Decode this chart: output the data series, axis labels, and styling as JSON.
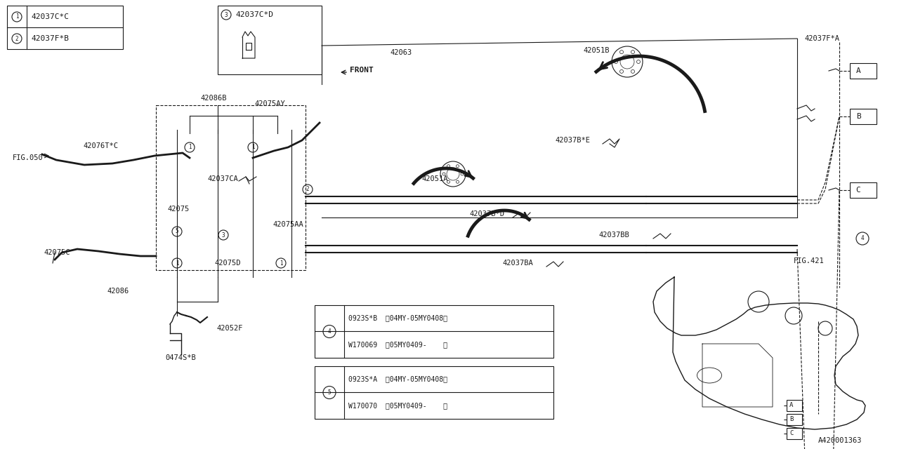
{
  "bg_color": "#ffffff",
  "line_color": "#1a1a1a",
  "fig_ref": "A420001363",
  "legend1_items": [
    {
      "num": "1",
      "part": "42037C*C"
    },
    {
      "num": "2",
      "part": "42037F*B"
    }
  ],
  "legend3_part": "42037C*D",
  "table4_row1": "0923S*B  (04MY-05MY0408)",
  "table4_row2": "W170069  (05MY0409-    )",
  "table5_row1": "0923S*A  (04MY-05MY0408)",
  "table5_row2": "W170070  (05MY0409-    )"
}
